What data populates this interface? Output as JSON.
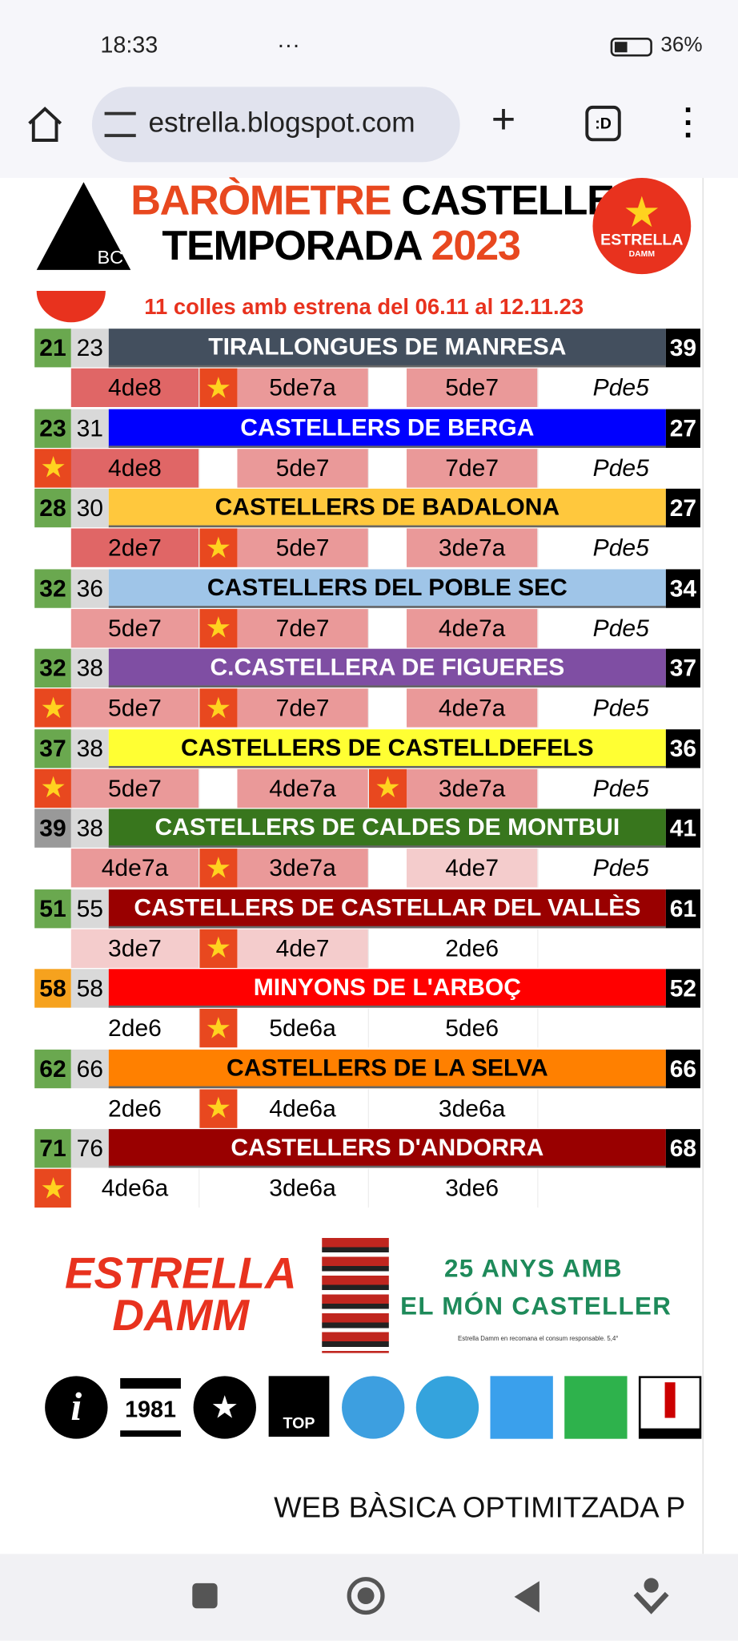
{
  "status": {
    "time": "18:33",
    "battery": "36%"
  },
  "browser": {
    "url": "estrella.blogspot.com",
    "tab": ":D"
  },
  "banner": {
    "line1a": "BARÒMETRE",
    "line1b": "CASTELLER",
    "line2a": "TEMPORADA",
    "line2b": "2023",
    "logo": "BC",
    "sponsor1": "ESTRELLA",
    "sponsor2": "DAMM"
  },
  "subtitle": "11 colles amb estrena del 06.11 al 12.11.23",
  "teams": [
    {
      "rank": 21,
      "rank_color": "#6aa84f",
      "prev": 23,
      "name": "TIRALLONGUES DE MANRESA",
      "color": "#434f5e",
      "text_color": "#ffffff",
      "points": 39,
      "castells": [
        {
          "name": "4de8",
          "color": "#e06666",
          "star": false
        },
        {
          "name": "5de7a",
          "color": "#ea9999",
          "star": true
        },
        {
          "name": "5de7",
          "color": "#ea9999",
          "star": false
        }
      ],
      "extra": "Pde5"
    },
    {
      "rank": 23,
      "rank_color": "#6aa84f",
      "prev": 31,
      "name": "CASTELLERS DE BERGA",
      "color": "#0000ff",
      "text_color": "#ffffff",
      "points": 27,
      "castells": [
        {
          "name": "4de8",
          "color": "#e06666",
          "star": true
        },
        {
          "name": "5de7",
          "color": "#ea9999",
          "star": false
        },
        {
          "name": "7de7",
          "color": "#ea9999",
          "star": false
        }
      ],
      "extra": "Pde5"
    },
    {
      "rank": 28,
      "rank_color": "#6aa84f",
      "prev": 30,
      "name": "CASTELLERS DE BADALONA",
      "color": "#ffc83d",
      "text_color": "#000000",
      "points": 27,
      "castells": [
        {
          "name": "2de7",
          "color": "#e06666",
          "star": false
        },
        {
          "name": "5de7",
          "color": "#ea9999",
          "star": true
        },
        {
          "name": "3de7a",
          "color": "#ea9999",
          "star": false
        }
      ],
      "extra": "Pde5"
    },
    {
      "rank": 32,
      "rank_color": "#6aa84f",
      "prev": 36,
      "name": "CASTELLERS DEL POBLE SEC",
      "color": "#9fc5e8",
      "text_color": "#000000",
      "points": 34,
      "castells": [
        {
          "name": "5de7",
          "color": "#ea9999",
          "star": false
        },
        {
          "name": "7de7",
          "color": "#ea9999",
          "star": true
        },
        {
          "name": "4de7a",
          "color": "#ea9999",
          "star": false
        }
      ],
      "extra": "Pde5"
    },
    {
      "rank": 32,
      "rank_color": "#6aa84f",
      "prev": 38,
      "name": "C.CASTELLERA DE FIGUERES",
      "color": "#7f4ea3",
      "text_color": "#ffffff",
      "points": 37,
      "castells": [
        {
          "name": "5de7",
          "color": "#ea9999",
          "star": true
        },
        {
          "name": "7de7",
          "color": "#ea9999",
          "star": true
        },
        {
          "name": "4de7a",
          "color": "#ea9999",
          "star": false
        }
      ],
      "extra": "Pde5"
    },
    {
      "rank": 37,
      "rank_color": "#6aa84f",
      "prev": 38,
      "name": "CASTELLERS DE CASTELLDEFELS",
      "color": "#ffff33",
      "text_color": "#000000",
      "points": 36,
      "castells": [
        {
          "name": "5de7",
          "color": "#ea9999",
          "star": true
        },
        {
          "name": "4de7a",
          "color": "#ea9999",
          "star": false
        },
        {
          "name": "3de7a",
          "color": "#ea9999",
          "star": true
        }
      ],
      "extra": "Pde5"
    },
    {
      "rank": 39,
      "rank_color": "#999999",
      "prev": 38,
      "name": "CASTELLERS DE CALDES DE MONTBUI",
      "color": "#38761d",
      "text_color": "#ffffff",
      "points": 41,
      "castells": [
        {
          "name": "4de7a",
          "color": "#ea9999",
          "star": false
        },
        {
          "name": "3de7a",
          "color": "#ea9999",
          "star": true
        },
        {
          "name": "4de7",
          "color": "#f4cccc",
          "star": false
        }
      ],
      "extra": "Pde5"
    },
    {
      "rank": 51,
      "rank_color": "#6aa84f",
      "prev": 55,
      "name": "CASTELLERS DE CASTELLAR DEL VALLÈS",
      "color": "#990000",
      "text_color": "#ffffff",
      "points": 61,
      "castells": [
        {
          "name": "3de7",
          "color": "#f4cccc",
          "star": false
        },
        {
          "name": "4de7",
          "color": "#f4cccc",
          "star": true
        },
        {
          "name": "2de6",
          "color": "#ffffff",
          "star": false
        }
      ]
    },
    {
      "rank": 58,
      "rank_color": "#f6a21e",
      "prev": 58,
      "name": "MINYONS DE L'ARBOÇ",
      "color": "#ff0000",
      "text_color": "#ffffff",
      "points": 52,
      "castells": [
        {
          "name": "2de6",
          "color": "#ffffff",
          "star": false
        },
        {
          "name": "5de6a",
          "color": "#ffffff",
          "star": true
        },
        {
          "name": "5de6",
          "color": "#ffffff",
          "star": false
        }
      ]
    },
    {
      "rank": 62,
      "rank_color": "#6aa84f",
      "prev": 66,
      "name": "CASTELLERS DE LA SELVA",
      "color": "#ff8000",
      "text_color": "#000000",
      "points": 66,
      "castells": [
        {
          "name": "2de6",
          "color": "#ffffff",
          "star": false
        },
        {
          "name": "4de6a",
          "color": "#ffffff",
          "star": true
        },
        {
          "name": "3de6a",
          "color": "#ffffff",
          "star": false
        }
      ]
    },
    {
      "rank": 71,
      "rank_color": "#6aa84f",
      "prev": 76,
      "name": "CASTELLERS D'ANDORRA",
      "color": "#990000",
      "text_color": "#ffffff",
      "points": 68,
      "castells": [
        {
          "name": "4de6a",
          "color": "#ffffff",
          "star": true
        },
        {
          "name": "3de6a",
          "color": "#ffffff",
          "star": false
        },
        {
          "name": "3de6",
          "color": "#ffffff",
          "star": false
        }
      ]
    }
  ],
  "ad": {
    "brand1": "ESTRELLA",
    "brand2": "DAMM",
    "line1": "25 ANYS AMB",
    "line2": "EL MÓN CASTELLER",
    "note": "Estrella Damm en recomana el consum responsable. 5,4°"
  },
  "icons": {
    "year": "1981",
    "top": "TOP"
  },
  "footer": "WEB BÀSICA OPTIMITZADA P"
}
